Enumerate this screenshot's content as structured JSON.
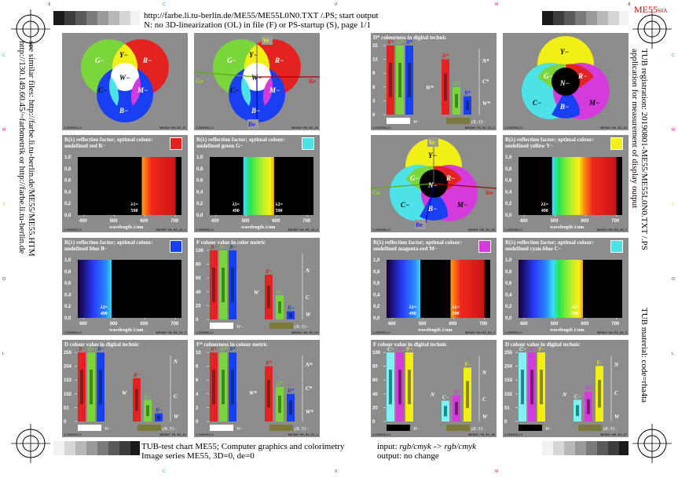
{
  "header": {
    "line1": "http://farbe.li.tu-berlin.de/ME55/ME55L0N0.TXT /.PS; start output",
    "line2": "N: no 3D-linearization (OL) in file (F) or PS-startup (S), page 1/1",
    "code_badge": "ME55",
    "code_badge_sub": "S0A"
  },
  "footer": {
    "line1": "TUB-test chart ME55; Computer graphics and colorimetry",
    "line2": "Image series ME55, 3D=0, de=0",
    "input_label": "input: ",
    "input_value": "rgb/cmyk -> rgb/cmyk",
    "output": "output: no change"
  },
  "left_side": {
    "line1": "see similar files: http://farbe.li.tu-berlin.de/ME55/ME55.HTM",
    "line2": "http://130.149.60.45/~farbmetrik or http://farbe.li.tu-berlin.de"
  },
  "right_side": {
    "line1": "TUB registration: 20190801-ME55/ME55L0N0.TXT /.PS",
    "line2": "application for measurement of display output",
    "line3": "TUB material: code=rha4ta"
  },
  "edge_letters": {
    "c": "C",
    "m": "M",
    "y": "Y",
    "o": "O",
    "l": "L",
    "v": "V",
    "minus6": "-6",
    "minus8": "-8"
  },
  "venn": {
    "G": "G−",
    "Y": "Y−",
    "R": "R−",
    "W": "W−",
    "C": "C−",
    "M": "M−",
    "B": "B−",
    "N": "N−",
    "Ye": "Ye",
    "Ge": "Ge",
    "Re": "Re",
    "Be": "Be",
    "foot1_left": "1-003900-L0",
    "foot1_right": "ME550−0N, B2_47",
    "foot2_left": "1-003900-L0",
    "foot2_right": "ME550−0N, B2_48",
    "foot3_left": "1-003900-L0",
    "foot3_right": "ME551−0N, B2_53",
    "foot4_left": "1-003900-L0",
    "foot4_right": "ME551−3N, B2_54"
  },
  "spectra": {
    "red_title1": "R(λ) reflection factor; optimal colour:",
    "red_title2": "undefined red R−",
    "green_title1": "R(λ) reflection factor; optimal colour:",
    "green_title2": "undefined green G−",
    "yellow_title1": "R(λ) reflection factor; optimal colour:",
    "yellow_title2": "undefined yellow Y−",
    "blue_title1": "R(λ) reflection factor; optimal colour:",
    "blue_title2": "undefined blue B−",
    "magenta_title1": "R(λ) reflection factor; optimal colour:",
    "magenta_title2": "undefined magenta-red M−",
    "cyan_title1": "R(λ) reflection factor; optimal colour:",
    "cyan_title2": "undefined cyan-blue C−",
    "yticks": [
      "1,0",
      "0,8",
      "0,6",
      "0,4",
      "0,2",
      "0,0"
    ],
    "xticks": [
      "400",
      "500",
      "600",
      "700"
    ],
    "xlabel": "wavelength λ/nm",
    "l1": "λ1=",
    "l2": "λ2=",
    "v590": "590",
    "v490": "490",
    "foot_red": "ME550−3N, B2_49_1",
    "foot_green": "ME550−0N, B2_49_2",
    "foot_yellow": "ME551−0N, B2_55_1",
    "foot_blue": "ME550−3N, B2_49_3",
    "foot_magenta": "ME551−0N, B2_55_2",
    "foot_cyan": "ME551−3N, B2_55_3",
    "foot_left": "1-003900-L0"
  },
  "bars": {
    "dstar_title": "D*  colourness in digital technic",
    "f_title": "F  colour value in color metric",
    "dval_title": "D  colour value in digital technic",
    "fstar_title": "F*  colourness in colour metric",
    "f2_title": "F  colour value in digital technic",
    "d2_title": "D  colour value in digital technic",
    "dstar_ticks": [
      "15",
      "12",
      "9",
      "6",
      "3",
      "0"
    ],
    "f_ticks": [
      "100",
      "80",
      "60",
      "40",
      "20",
      "0"
    ],
    "d_ticks": [
      "255",
      "204",
      "153",
      "102",
      "51",
      "0"
    ],
    "fstar_ticks": [
      "10",
      "8",
      "6",
      "4",
      "2",
      "0"
    ],
    "rs": "R*",
    "gs": "G*",
    "bs": "B*",
    "rm": "R−",
    "gm": "G−",
    "bm": "B−",
    "cm": "C−",
    "mm": "M−",
    "ym": "Y−",
    "N": "N",
    "W": "W",
    "C": "C",
    "Ns": "N*",
    "Ws": "W*",
    "Cs": "C*",
    "wm": "W−",
    "ry": "(R..Y)−",
    "foot_left": "1-003900-L0",
    "foot_dstar": "ME550−7N, B2_52_2",
    "foot_f": "ME550−0N, B2_50",
    "foot_d": "ME550−7N, B2_51",
    "foot_fstar": "ME550−0N, B2_52_1",
    "foot_f2": "ME551−7N, B2_56",
    "foot_d2": "ME551−0N, B2_57"
  }
}
